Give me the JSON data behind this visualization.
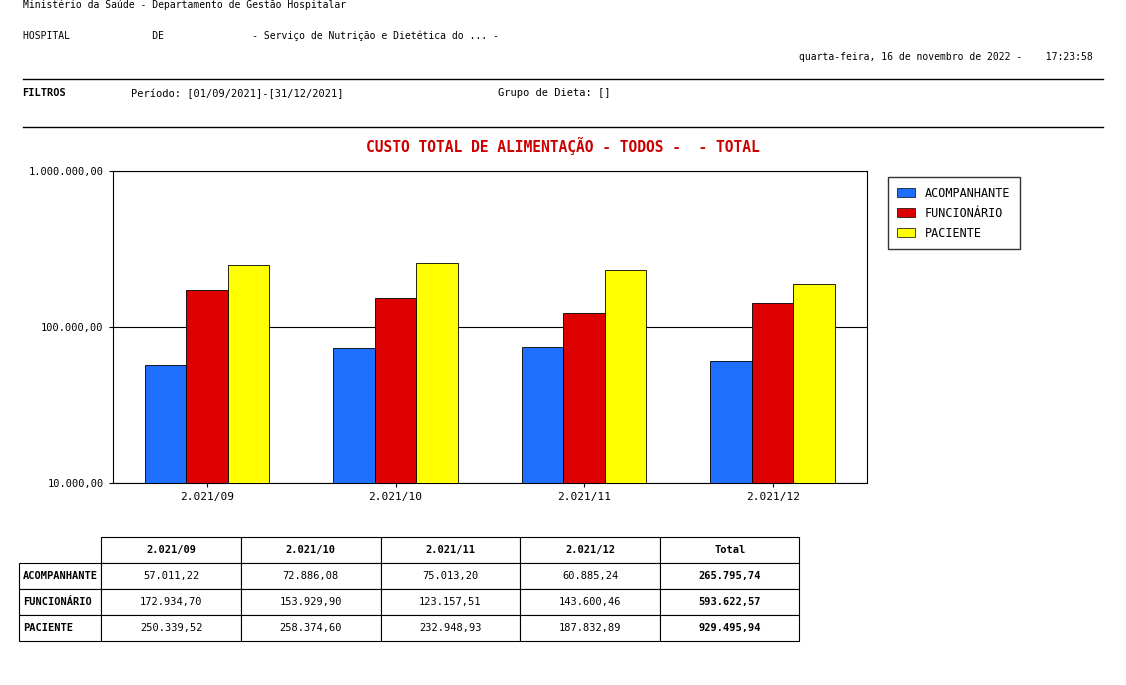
{
  "title": "CUSTO TOTAL DE ALIMENTAÇÃO - TODOS -  - TOTAL",
  "title_color": "#cc0000",
  "header_line1": "Ministério da Saúde - Departamento de Gestão Hospitalar",
  "header_line2": "HOSPITAL              DE               - Serviço de Nutrição e Dietética do ... -",
  "header_date": "quarta-feira, 16 de novembro de 2022 -    17:23:58",
  "categories": [
    "2.021/09",
    "2.021/10",
    "2.021/11",
    "2.021/12"
  ],
  "series": {
    "ACOMPANHANTE": [
      57011.22,
      72886.08,
      75013.2,
      60885.24
    ],
    "FUNCIONÁRIO": [
      172934.7,
      153929.9,
      123157.51,
      143600.46
    ],
    "PACIENTE": [
      250339.52,
      258374.6,
      232948.93,
      187832.89
    ]
  },
  "totals": {
    "ACOMPANHANTE": "265.795,74",
    "FUNCIONÁRIO": "593.622,57",
    "PACIENTE": "929.495,94"
  },
  "colors": {
    "ACOMPANHANTE": "#1f6fff",
    "FUNCIONÁRIO": "#dd0000",
    "PACIENTE": "#ffff00"
  },
  "bar_edge_color": "#000000",
  "ylim_log": [
    10000,
    1000000
  ],
  "yticks": [
    10000,
    100000,
    1000000
  ],
  "ytick_labels": [
    "10.000,00",
    "100.000,00",
    "1.000.000,00"
  ],
  "background_color": "#ffffff",
  "legend_labels": [
    "ACOMPANHANTE",
    "FUNCIONÁRIO",
    "PACIENTE"
  ],
  "bar_width": 0.22,
  "figure_width": 11.26,
  "figure_height": 6.85
}
